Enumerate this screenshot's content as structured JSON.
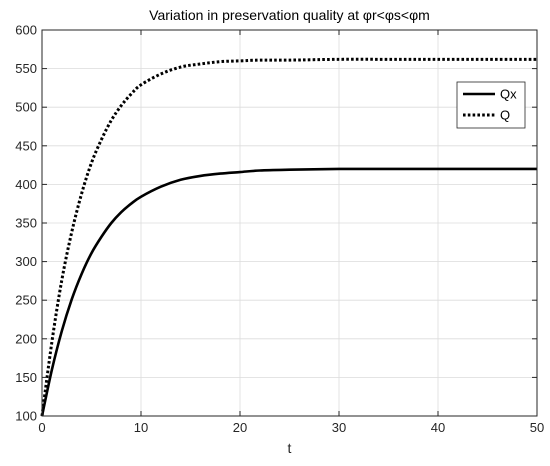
{
  "chart_data": {
    "type": "line",
    "title": "Variation in preservation quality at φr<φs<φm",
    "xlabel": "t",
    "ylabel": "",
    "xlim": [
      0,
      50
    ],
    "ylim": [
      100,
      600
    ],
    "xticks": [
      0,
      10,
      20,
      30,
      40,
      50
    ],
    "yticks": [
      100,
      150,
      200,
      250,
      300,
      350,
      400,
      450,
      500,
      550,
      600
    ],
    "grid": true,
    "legend_position": "upper-right",
    "x": [
      0,
      1,
      2,
      3,
      4,
      5,
      6,
      7,
      8,
      9,
      10,
      12,
      14,
      16,
      18,
      20,
      22,
      25,
      30,
      35,
      40,
      45,
      50
    ],
    "series": [
      {
        "name": "Qx",
        "style": "solid",
        "color": "#000000",
        "values": [
          100,
          160,
          210,
          251,
          284,
          311,
          332,
          350,
          364,
          375,
          384,
          397,
          406,
          411,
          414,
          416,
          418,
          419,
          420,
          420,
          420,
          420,
          420
        ]
      },
      {
        "name": "Q",
        "style": "dotted",
        "color": "#000000",
        "values": [
          100,
          196,
          276,
          338,
          388,
          428,
          458,
          483,
          502,
          517,
          529,
          543,
          552,
          556,
          559,
          560,
          561,
          561,
          562,
          562,
          562,
          562,
          562
        ]
      }
    ]
  }
}
